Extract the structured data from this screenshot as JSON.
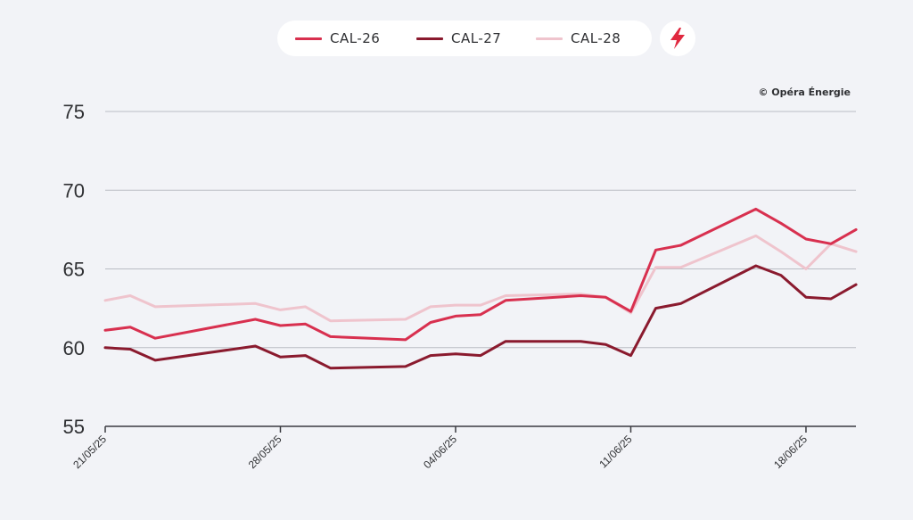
{
  "legend": {
    "items": [
      {
        "label": "CAL-26",
        "color": "#d8304f"
      },
      {
        "label": "CAL-27",
        "color": "#8a1a2e"
      },
      {
        "label": "CAL-28",
        "color": "#efc4cd"
      }
    ]
  },
  "alert_icon": "lightning-bolt-icon",
  "accent_color": "#e0283f",
  "copyright": "© Opéra Énergie",
  "chart_data": {
    "type": "line",
    "x": [
      "21/05/25",
      "22/05/25",
      "23/05/25",
      "27/05/25",
      "28/05/25",
      "29/05/25",
      "30/05/25",
      "02/06/25",
      "03/06/25",
      "04/06/25",
      "05/06/25",
      "06/06/25",
      "09/06/25",
      "10/06/25",
      "11/06/25",
      "12/06/25",
      "13/06/25",
      "16/06/25",
      "17/06/25",
      "18/06/25",
      "19/06/25",
      "20/06/25"
    ],
    "x_ticks": [
      "21/05/25",
      "28/05/25",
      "04/06/25",
      "11/06/25",
      "18/06/25"
    ],
    "series": [
      {
        "name": "CAL-26",
        "color": "#d8304f",
        "values": [
          61.1,
          61.3,
          60.6,
          61.8,
          61.4,
          61.5,
          60.7,
          60.5,
          61.6,
          62.0,
          62.1,
          63.0,
          63.3,
          63.2,
          62.3,
          66.2,
          66.5,
          68.8,
          67.9,
          66.9,
          66.6,
          67.5
        ]
      },
      {
        "name": "CAL-27",
        "color": "#8a1a2e",
        "values": [
          60.0,
          59.9,
          59.2,
          60.1,
          59.4,
          59.5,
          58.7,
          58.8,
          59.5,
          59.6,
          59.5,
          60.4,
          60.4,
          60.2,
          59.5,
          62.5,
          62.8,
          65.2,
          64.6,
          63.2,
          63.1,
          64.0
        ]
      },
      {
        "name": "CAL-28",
        "color": "#efc4cd",
        "values": [
          63.0,
          63.3,
          62.6,
          62.8,
          62.4,
          62.6,
          61.7,
          61.8,
          62.6,
          62.7,
          62.7,
          63.3,
          63.4,
          63.2,
          62.2,
          65.1,
          65.1,
          67.1,
          66.1,
          65.0,
          66.6,
          66.1
        ]
      }
    ],
    "y_ticks": [
      55,
      60,
      65,
      70,
      75
    ],
    "ylim": [
      55,
      75
    ],
    "grid": true,
    "legend_position": "top-center"
  }
}
